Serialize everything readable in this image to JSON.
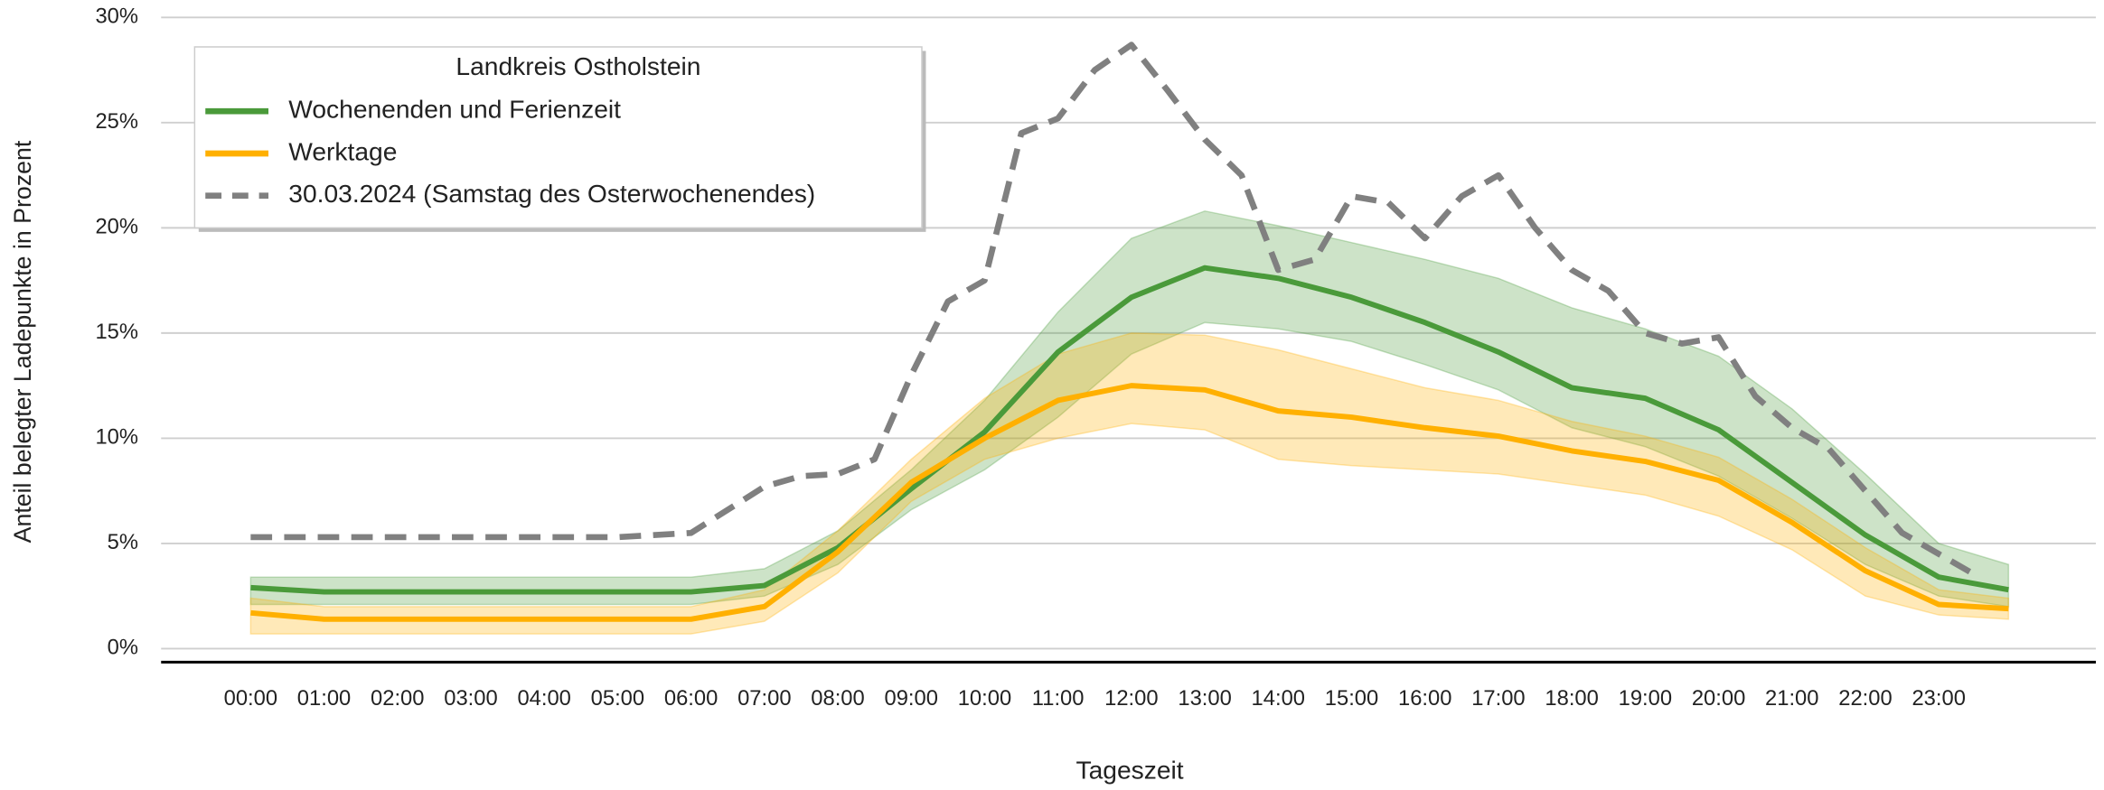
{
  "chart_data": {
    "type": "line",
    "legend_title": "Landkreis Ostholstein",
    "xlabel": "Tageszeit",
    "ylabel": "Anteil belegter Ladepunkte in Prozent",
    "x": [
      0,
      1,
      2,
      3,
      4,
      5,
      6,
      7,
      8,
      9,
      10,
      11,
      12,
      13,
      14,
      15,
      16,
      17,
      18,
      19,
      20,
      21,
      22,
      23,
      23.95
    ],
    "series": [
      {
        "name": "Wochenenden und Ferienzeit",
        "color": "#4a9a3a",
        "values": [
          2.9,
          2.7,
          2.7,
          2.7,
          2.7,
          2.7,
          2.7,
          3.0,
          4.8,
          7.6,
          10.3,
          14.1,
          16.7,
          18.1,
          17.6,
          16.7,
          15.5,
          14.1,
          12.4,
          11.9,
          10.4,
          7.9,
          5.4,
          3.4,
          2.8
        ],
        "upper": [
          3.4,
          3.4,
          3.4,
          3.4,
          3.4,
          3.4,
          3.4,
          3.8,
          5.6,
          8.5,
          11.8,
          16.0,
          19.5,
          20.8,
          20.1,
          19.3,
          18.5,
          17.6,
          16.2,
          15.2,
          13.9,
          11.4,
          8.3,
          5.0,
          4.0
        ],
        "lower": [
          2.1,
          2.1,
          2.1,
          2.1,
          2.1,
          2.1,
          2.1,
          2.5,
          4.0,
          6.6,
          8.5,
          11.0,
          14.0,
          15.5,
          15.2,
          14.6,
          13.5,
          12.3,
          10.5,
          9.6,
          8.2,
          6.2,
          4.0,
          2.5,
          2.0
        ]
      },
      {
        "name": "Werktage",
        "color": "#ffb000",
        "values": [
          1.7,
          1.4,
          1.4,
          1.4,
          1.4,
          1.4,
          1.4,
          2.0,
          4.6,
          7.9,
          10.0,
          11.8,
          12.5,
          12.3,
          11.3,
          11.0,
          10.5,
          10.1,
          9.4,
          8.9,
          8.0,
          6.0,
          3.7,
          2.1,
          1.9
        ],
        "upper": [
          2.4,
          2.0,
          2.0,
          2.0,
          2.0,
          2.0,
          2.0,
          2.8,
          5.6,
          9.0,
          11.9,
          14.0,
          15.0,
          14.9,
          14.2,
          13.3,
          12.4,
          11.8,
          10.8,
          10.1,
          9.1,
          7.1,
          4.8,
          2.8,
          2.4
        ],
        "lower": [
          0.7,
          0.7,
          0.7,
          0.7,
          0.7,
          0.7,
          0.7,
          1.3,
          3.6,
          7.0,
          9.0,
          10.0,
          10.7,
          10.4,
          9.0,
          8.7,
          8.5,
          8.3,
          7.8,
          7.3,
          6.3,
          4.7,
          2.5,
          1.6,
          1.4
        ]
      },
      {
        "name": "30.03.2024 (Samstag des Osterwochenendes)",
        "color": "#808080",
        "dashed": true,
        "x": [
          0,
          1,
          2,
          3,
          4,
          5,
          6,
          7,
          7.5,
          8,
          8.5,
          9,
          9.5,
          10,
          10.5,
          11,
          11.5,
          12,
          12.5,
          13,
          13.5,
          14,
          14.5,
          15,
          15.5,
          16,
          16.5,
          17,
          17.5,
          18,
          18.5,
          19,
          19.5,
          20,
          20.5,
          21,
          21.5,
          22,
          22.5,
          23,
          23.5
        ],
        "values": [
          5.3,
          5.3,
          5.3,
          5.3,
          5.3,
          5.3,
          5.5,
          7.7,
          8.2,
          8.3,
          9.0,
          13.0,
          16.5,
          17.5,
          24.5,
          25.2,
          27.5,
          28.7,
          26.5,
          24.2,
          22.5,
          18.0,
          18.5,
          21.5,
          21.2,
          19.5,
          21.5,
          22.5,
          20.0,
          18.0,
          17.0,
          15.0,
          14.5,
          14.8,
          12.0,
          10.5,
          9.5,
          7.5,
          5.5,
          4.5,
          3.5
        ]
      }
    ],
    "xlim": [
      -1.22,
      25.14
    ],
    "xticks": [
      {
        "value": 0,
        "label": "00:00"
      },
      {
        "value": 1,
        "label": "01:00"
      },
      {
        "value": 2,
        "label": "02:00"
      },
      {
        "value": 3,
        "label": "03:00"
      },
      {
        "value": 4,
        "label": "04:00"
      },
      {
        "value": 5,
        "label": "05:00"
      },
      {
        "value": 6,
        "label": "06:00"
      },
      {
        "value": 7,
        "label": "07:00"
      },
      {
        "value": 8,
        "label": "08:00"
      },
      {
        "value": 9,
        "label": "09:00"
      },
      {
        "value": 10,
        "label": "10:00"
      },
      {
        "value": 11,
        "label": "11:00"
      },
      {
        "value": 12,
        "label": "12:00"
      },
      {
        "value": 13,
        "label": "13:00"
      },
      {
        "value": 14,
        "label": "14:00"
      },
      {
        "value": 15,
        "label": "15:00"
      },
      {
        "value": 16,
        "label": "16:00"
      },
      {
        "value": 17,
        "label": "17:00"
      },
      {
        "value": 18,
        "label": "18:00"
      },
      {
        "value": 19,
        "label": "19:00"
      },
      {
        "value": 20,
        "label": "20:00"
      },
      {
        "value": 21,
        "label": "21:00"
      },
      {
        "value": 22,
        "label": "22:00"
      },
      {
        "value": 23,
        "label": "23:00"
      }
    ],
    "ylim": [
      -0.64,
      30
    ],
    "yticks": [
      {
        "value": 0,
        "label": "0%"
      },
      {
        "value": 5,
        "label": "5%"
      },
      {
        "value": 10,
        "label": "10%"
      },
      {
        "value": 15,
        "label": "15%"
      },
      {
        "value": 20,
        "label": "20%"
      },
      {
        "value": 25,
        "label": "25%"
      },
      {
        "value": 30,
        "label": "30%"
      }
    ],
    "grid": true,
    "legend": "upper left"
  }
}
